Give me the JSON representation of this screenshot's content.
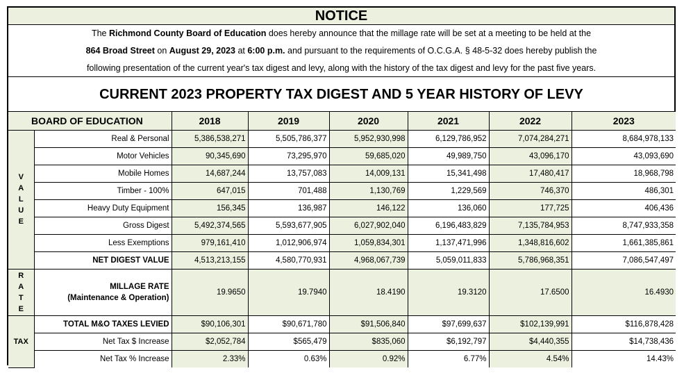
{
  "notice_title": "NOTICE",
  "intro": {
    "l1_pre": "The ",
    "l1_board": "Richmond County Board of Education",
    "l1_post": " does hereby announce that the millage rate will be set at a meeting to be held at the",
    "l2_addr": "864 Broad Street",
    "l2_on": " on ",
    "l2_date": "August 29, 2023",
    "l2_at": " at ",
    "l2_time": "6:00 p.m.",
    "l2_post": " and pursuant to the requirements of O.C.G.A. § 48-5-32 does hereby publish the",
    "l3": "following presentation of the current year's tax digest and levy, along with the history of the tax digest and levy for the past five years."
  },
  "table_title": "CURRENT 2023 PROPERTY TAX DIGEST AND 5 YEAR HISTORY OF LEVY",
  "header": {
    "label": "BOARD OF EDUCATION",
    "years": [
      "2018",
      "2019",
      "2020",
      "2021",
      "2022",
      "2023"
    ]
  },
  "groups": {
    "value": [
      "V",
      "A",
      "L",
      "U",
      "E"
    ],
    "rate": [
      "R",
      "A",
      "T",
      "E"
    ],
    "tax": "TAX"
  },
  "value_rows": [
    {
      "label": "Real & Personal",
      "values": [
        "5,386,538,271",
        "5,505,786,377",
        "5,952,930,998",
        "6,129,786,952",
        "7,074,284,271",
        "8,684,978,133"
      ]
    },
    {
      "label": "Motor Vehicles",
      "values": [
        "90,345,690",
        "73,295,970",
        "59,685,020",
        "49,989,750",
        "43,096,170",
        "43,093,690"
      ]
    },
    {
      "label": "Mobile Homes",
      "values": [
        "14,687,244",
        "13,757,083",
        "14,009,131",
        "15,341,498",
        "17,480,417",
        "18,968,798"
      ]
    },
    {
      "label": "Timber - 100%",
      "values": [
        "647,015",
        "701,488",
        "1,130,769",
        "1,229,569",
        "746,370",
        "486,301"
      ]
    },
    {
      "label": "Heavy Duty Equipment",
      "values": [
        "156,345",
        "136,987",
        "146,122",
        "136,060",
        "177,725",
        "406,436"
      ]
    },
    {
      "label": "Gross Digest",
      "values": [
        "5,492,374,565",
        "5,593,677,905",
        "6,027,902,040",
        "6,196,483,829",
        "7,135,784,953",
        "8,747,933,358"
      ]
    },
    {
      "label": "Less Exemptions",
      "values": [
        "979,161,410",
        "1,012,906,974",
        "1,059,834,301",
        "1,137,471,996",
        "1,348,816,602",
        "1,661,385,861"
      ]
    },
    {
      "label": "NET DIGEST VALUE",
      "values": [
        "4,513,213,155",
        "4,580,770,931",
        "4,968,067,739",
        "5,059,011,833",
        "5,786,968,351",
        "7,086,547,497"
      ]
    }
  ],
  "rate_row": {
    "label_1": "MILLAGE RATE",
    "label_2": "(Maintenance & Operation)",
    "values": [
      "19.9650",
      "19.7940",
      "18.4190",
      "19.3120",
      "17.6500",
      "16.4930"
    ]
  },
  "tax_rows": [
    {
      "label": "TOTAL M&O TAXES LEVIED",
      "values": [
        "$90,106,301",
        "$90,671,780",
        "$91,506,840",
        "$97,699,637",
        "$102,139,991",
        "$116,878,428"
      ]
    },
    {
      "label": "Net Tax $ Increase",
      "values": [
        "$2,052,784",
        "$565,479",
        "$835,060",
        "$6,192,797",
        "$4,440,355",
        "$14,738,436"
      ]
    },
    {
      "label": "Net Tax % Increase",
      "values": [
        "2.33%",
        "0.63%",
        "0.92%",
        "6.77%",
        "4.54%",
        "14.43%"
      ]
    }
  ],
  "colors": {
    "shade": "#ebf1de",
    "border": "#000000"
  }
}
